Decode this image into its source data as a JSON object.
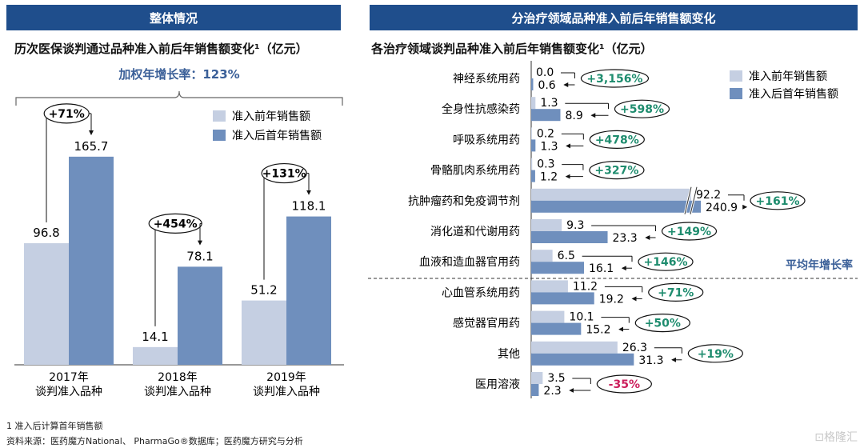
{
  "left_panel": {
    "header": "整体情况",
    "subtitle": "历次医保谈判通过品种准入前后年销售额变化¹（亿元）",
    "cagr_label": "加权年增长率：123%"
  },
  "right_panel": {
    "header": "分治疗领域品种准入前后年销售额变化",
    "subtitle": "各治疗领域谈判品种准入前后年销售额变化¹（亿元）",
    "avg_growth_label": "平均年增长率"
  },
  "colors": {
    "before": "#c5cfe2",
    "after": "#6f8fbd",
    "header": "#1f4e8c",
    "positive": "#1e8c6e",
    "negative": "#cc1f5c"
  },
  "chart_data": [
    {
      "type": "bar",
      "categories": [
        "2017年\n谈判准入品种",
        "2018年\n谈判准入品种",
        "2019年\n谈判准入品种"
      ],
      "series": [
        {
          "name": "准入前年销售额",
          "values": [
            96.8,
            14.1,
            51.2
          ]
        },
        {
          "name": "准入后首年销售额",
          "values": [
            165.7,
            78.1,
            118.1
          ]
        }
      ],
      "growth_labels": [
        "+71%",
        "+454%",
        "+131%"
      ],
      "legend_position": "top-right",
      "grid": false
    },
    {
      "type": "bar",
      "orientation": "horizontal",
      "categories": [
        "神经系统用药",
        "全身性抗感染药",
        "呼吸系统用药",
        "骨骼肌肉系统用药",
        "抗肿瘤药和免疫调节剂",
        "消化道和代谢用药",
        "血液和造血器官用药",
        "心血管系统用药",
        "感觉器官用药",
        "其他",
        "医用溶液"
      ],
      "series": [
        {
          "name": "准入前年销售额",
          "values": [
            0.0,
            1.3,
            0.2,
            0.3,
            92.2,
            9.3,
            6.5,
            11.2,
            10.1,
            26.3,
            3.5
          ]
        },
        {
          "name": "准入后首年销售额",
          "values": [
            0.6,
            8.9,
            1.3,
            1.2,
            240.9,
            23.3,
            16.1,
            19.2,
            15.2,
            31.3,
            2.3
          ]
        }
      ],
      "growth_labels": [
        "+3,156%",
        "+598%",
        "+478%",
        "+327%",
        "+161%",
        "+149%",
        "+146%",
        "+71%",
        "+50%",
        "+19%",
        "-35%"
      ],
      "broken_axis_category": "抗肿瘤药和免疫调节剂",
      "legend_position": "top-right",
      "grid": false
    }
  ],
  "footnotes": {
    "note1": "1 准入后计算首年销售额",
    "source": "资料来源：医药魔方National、 PharmaGo®数据库；医药魔方研究与分析"
  },
  "watermark": "⊡格隆汇"
}
